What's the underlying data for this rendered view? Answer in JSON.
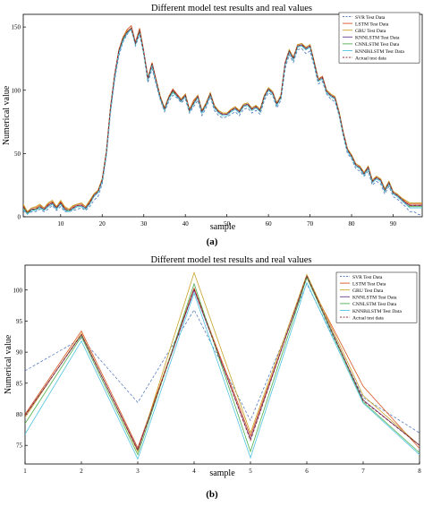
{
  "palette": {
    "SVR": "#5b7fbf",
    "LSTM": "#d9541e",
    "GRU": "#c9a227",
    "KNNLSTM": "#6a3d8f",
    "CNNLSTM": "#4caf50",
    "KNNBiLSTM": "#4fc3e0",
    "Actual": "#8b1a1a"
  },
  "chart_data": [
    {
      "type": "line",
      "panel_label": "(a)",
      "title": "Different model test results and real values",
      "xlabel": "sample",
      "ylabel": "Numerical value",
      "xlim": [
        1,
        97
      ],
      "ylim": [
        0,
        160
      ],
      "xticks": [
        10,
        20,
        30,
        40,
        50,
        60,
        70,
        80,
        90
      ],
      "yticks": [
        0,
        50,
        100,
        150
      ],
      "grid": false,
      "legend_position": "top-right",
      "x": [
        1,
        2,
        3,
        4,
        5,
        6,
        7,
        8,
        9,
        10,
        11,
        12,
        13,
        14,
        15,
        16,
        17,
        18,
        19,
        20,
        21,
        22,
        23,
        24,
        25,
        26,
        27,
        28,
        29,
        30,
        31,
        32,
        33,
        34,
        35,
        36,
        37,
        38,
        39,
        40,
        41,
        42,
        43,
        44,
        45,
        46,
        47,
        48,
        49,
        50,
        51,
        52,
        53,
        54,
        55,
        56,
        57,
        58,
        59,
        60,
        61,
        62,
        63,
        64,
        65,
        66,
        67,
        68,
        69,
        70,
        71,
        72,
        73,
        74,
        75,
        76,
        77,
        78,
        79,
        80,
        81,
        82,
        83,
        84,
        85,
        86,
        87,
        88,
        89,
        90,
        91,
        92,
        93,
        94,
        95,
        96,
        97
      ],
      "series": [
        {
          "name": "SVR Test Data",
          "style": "dashed",
          "values": [
            5,
            2,
            4,
            4,
            6,
            4,
            6,
            9,
            5,
            8,
            4,
            4,
            5,
            6,
            7,
            5,
            8,
            13,
            16,
            26,
            48,
            82,
            108,
            127,
            138,
            144,
            150,
            135,
            144,
            128,
            106,
            117,
            104,
            92,
            83,
            91,
            96,
            94,
            90,
            93,
            82,
            87,
            92,
            80,
            86,
            95,
            84,
            80,
            78,
            79,
            81,
            83,
            80,
            85,
            86,
            82,
            84,
            81,
            92,
            98,
            96,
            86,
            92,
            117,
            128,
            122,
            132,
            133,
            129,
            131,
            119,
            105,
            107,
            97,
            93,
            91,
            80,
            64,
            50,
            46,
            38,
            36,
            32,
            36,
            25,
            28,
            26,
            18,
            24,
            16,
            14,
            11,
            8,
            4,
            4,
            2,
            1
          ]
        },
        {
          "name": "LSTM Test Data",
          "style": "solid",
          "values": [
            9,
            4,
            7,
            7,
            9,
            7,
            10,
            12,
            8,
            12,
            7,
            6,
            8,
            10,
            10,
            8,
            12,
            18,
            21,
            30,
            52,
            87,
            113,
            132,
            142,
            148,
            151,
            138,
            149,
            131,
            110,
            122,
            108,
            95,
            86,
            95,
            101,
            97,
            93,
            97,
            85,
            92,
            96,
            84,
            90,
            98,
            88,
            84,
            82,
            82,
            85,
            87,
            84,
            89,
            90,
            86,
            88,
            85,
            96,
            102,
            99,
            90,
            96,
            122,
            132,
            126,
            136,
            137,
            134,
            136,
            123,
            109,
            111,
            100,
            97,
            95,
            83,
            67,
            54,
            49,
            42,
            40,
            35,
            40,
            29,
            32,
            30,
            22,
            28,
            20,
            18,
            15,
            12,
            10,
            10,
            10,
            10
          ]
        },
        {
          "name": "GRU Test Data",
          "style": "solid",
          "values": [
            10,
            4,
            7,
            8,
            10,
            7,
            11,
            13,
            8,
            13,
            8,
            6,
            9,
            10,
            11,
            8,
            13,
            18,
            21,
            30,
            52,
            87,
            112,
            131,
            142,
            147,
            149,
            137,
            148,
            130,
            110,
            121,
            108,
            95,
            86,
            95,
            100,
            96,
            93,
            97,
            85,
            91,
            96,
            84,
            90,
            98,
            88,
            84,
            82,
            82,
            85,
            87,
            84,
            89,
            90,
            86,
            88,
            85,
            96,
            102,
            99,
            90,
            96,
            121,
            132,
            126,
            136,
            137,
            134,
            136,
            123,
            109,
            110,
            100,
            97,
            95,
            83,
            67,
            54,
            49,
            42,
            40,
            35,
            40,
            29,
            32,
            30,
            22,
            28,
            20,
            18,
            15,
            13,
            11,
            11,
            11,
            11
          ]
        },
        {
          "name": "KNNLSTM Test Data",
          "style": "solid",
          "values": [
            8,
            3,
            6,
            6,
            8,
            6,
            9,
            11,
            7,
            11,
            6,
            5,
            7,
            9,
            9,
            7,
            11,
            17,
            20,
            29,
            51,
            86,
            112,
            131,
            141,
            146,
            149,
            137,
            147,
            130,
            109,
            121,
            107,
            94,
            85,
            94,
            100,
            96,
            92,
            96,
            84,
            90,
            95,
            83,
            89,
            97,
            87,
            83,
            81,
            81,
            84,
            86,
            83,
            88,
            89,
            85,
            87,
            84,
            95,
            101,
            98,
            89,
            95,
            121,
            131,
            125,
            135,
            136,
            133,
            135,
            122,
            108,
            110,
            99,
            96,
            94,
            82,
            66,
            53,
            48,
            41,
            39,
            34,
            39,
            28,
            31,
            29,
            21,
            27,
            19,
            17,
            14,
            11,
            9,
            9,
            9,
            9
          ]
        },
        {
          "name": "CNNLSTM Test Data",
          "style": "solid",
          "values": [
            7,
            3,
            5,
            6,
            8,
            5,
            8,
            10,
            6,
            10,
            5,
            5,
            6,
            8,
            8,
            6,
            10,
            16,
            19,
            28,
            50,
            85,
            111,
            130,
            140,
            145,
            148,
            136,
            146,
            129,
            108,
            120,
            106,
            93,
            84,
            93,
            99,
            95,
            91,
            95,
            83,
            89,
            94,
            82,
            88,
            96,
            86,
            82,
            80,
            80,
            83,
            85,
            82,
            87,
            88,
            84,
            86,
            83,
            94,
            100,
            97,
            88,
            94,
            120,
            130,
            124,
            134,
            135,
            132,
            134,
            121,
            107,
            109,
            98,
            95,
            93,
            81,
            65,
            52,
            47,
            40,
            38,
            33,
            38,
            27,
            30,
            28,
            20,
            26,
            18,
            16,
            13,
            10,
            8,
            8,
            8,
            8
          ]
        },
        {
          "name": "KNNBiLSTM Test Data",
          "style": "solid",
          "values": [
            6,
            2,
            5,
            5,
            7,
            5,
            8,
            10,
            6,
            10,
            5,
            4,
            6,
            8,
            8,
            6,
            10,
            16,
            19,
            28,
            50,
            84,
            110,
            129,
            139,
            145,
            148,
            136,
            146,
            129,
            108,
            119,
            106,
            93,
            84,
            93,
            98,
            95,
            91,
            95,
            83,
            89,
            94,
            82,
            88,
            96,
            86,
            82,
            80,
            80,
            83,
            85,
            82,
            87,
            88,
            84,
            86,
            83,
            94,
            100,
            97,
            88,
            94,
            120,
            130,
            124,
            134,
            135,
            132,
            134,
            121,
            107,
            109,
            98,
            95,
            93,
            81,
            65,
            52,
            47,
            40,
            38,
            33,
            38,
            27,
            30,
            28,
            20,
            26,
            18,
            16,
            13,
            10,
            7,
            7,
            7,
            7
          ]
        },
        {
          "name": "Actual test data",
          "style": "dashed",
          "values": [
            8,
            3,
            6,
            6,
            8,
            6,
            9,
            11,
            7,
            11,
            6,
            5,
            7,
            9,
            9,
            7,
            11,
            17,
            20,
            29,
            51,
            86,
            112,
            131,
            141,
            146,
            149,
            137,
            147,
            130,
            109,
            121,
            107,
            94,
            85,
            94,
            100,
            96,
            92,
            96,
            84,
            90,
            95,
            83,
            89,
            97,
            87,
            83,
            81,
            81,
            84,
            86,
            83,
            88,
            89,
            85,
            87,
            84,
            95,
            101,
            98,
            89,
            95,
            121,
            131,
            125,
            135,
            136,
            133,
            135,
            122,
            108,
            110,
            99,
            96,
            94,
            82,
            66,
            53,
            48,
            41,
            39,
            34,
            39,
            28,
            31,
            29,
            21,
            27,
            19,
            17,
            14,
            11,
            9,
            9,
            9,
            9
          ]
        }
      ]
    },
    {
      "type": "line",
      "panel_label": "(b)",
      "title": "Different model test results and real values",
      "xlabel": "sample",
      "ylabel": "Numerical value",
      "xlim": [
        1,
        8
      ],
      "ylim": [
        72,
        104
      ],
      "xticks": [
        1,
        2,
        3,
        4,
        5,
        6,
        7,
        8
      ],
      "yticks": [
        75,
        80,
        85,
        90,
        95,
        100
      ],
      "grid": false,
      "legend_position": "top-right",
      "x": [
        1,
        2,
        3,
        4,
        5,
        6,
        7,
        8
      ],
      "series": [
        {
          "name": "SVR Test Data",
          "style": "dashed",
          "values": [
            87.0,
            92.2,
            81.9,
            96.8,
            79.0,
            101.0,
            82.7,
            77.0
          ]
        },
        {
          "name": "LSTM Test Data",
          "style": "solid",
          "values": [
            80.0,
            93.4,
            74.6,
            100.3,
            76.5,
            102.0,
            84.5,
            74.5
          ]
        },
        {
          "name": "GRU Test Data",
          "style": "solid",
          "values": [
            79.5,
            93.0,
            74.0,
            102.8,
            77.0,
            102.5,
            83.0,
            75.0
          ]
        },
        {
          "name": "KNNLSTM Test Data",
          "style": "solid",
          "values": [
            79.8,
            92.8,
            74.3,
            100.0,
            76.0,
            102.2,
            82.3,
            75.0
          ]
        },
        {
          "name": "CNNLSTM Test Data",
          "style": "solid",
          "values": [
            78.5,
            92.5,
            73.5,
            101.0,
            74.0,
            102.0,
            82.0,
            73.8
          ]
        },
        {
          "name": "KNNBiLSTM Test Data",
          "style": "solid",
          "values": [
            76.8,
            91.8,
            72.8,
            99.5,
            73.0,
            101.2,
            81.8,
            73.5
          ]
        },
        {
          "name": "Actual test data",
          "style": "dashed",
          "values": [
            79.8,
            92.8,
            74.2,
            100.2,
            75.8,
            102.3,
            82.2,
            75.0
          ]
        }
      ]
    }
  ]
}
